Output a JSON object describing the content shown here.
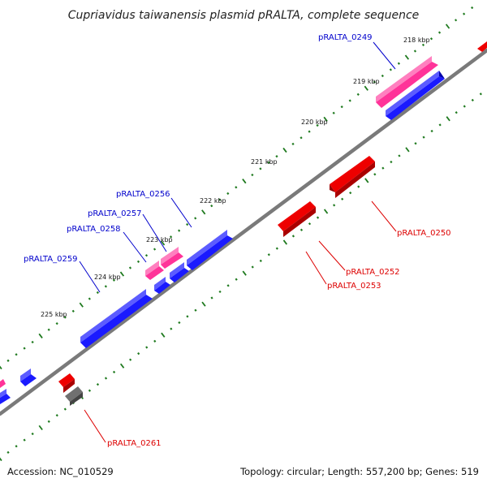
{
  "title": "Cupriavidus taiwanensis plasmid pRALTA, complete sequence",
  "footer": {
    "accession": "Accession: NC_010529",
    "summary": "Topology: circular; Length: 557,200 bp; Genes: 519"
  },
  "colors": {
    "forward_gene": "#0000ee",
    "reverse_gene": "#ee0000",
    "pink_gene": "#ff3399",
    "grey_gene": "#666666",
    "backbone": "#808080",
    "tick": "#1f7a1f",
    "forward_label": "#0000cc",
    "reverse_label": "#dd0000"
  },
  "kbp_ticks": [
    "218 kbp",
    "219 kbp",
    "220 kbp",
    "221 kbp",
    "222 kbp",
    "223 kbp",
    "224 kbp",
    "225 kbp"
  ],
  "gene_labels": [
    {
      "text": "pRALTA_0249",
      "strand": "forward"
    },
    {
      "text": "pRALTA_0256",
      "strand": "forward"
    },
    {
      "text": "pRALTA_0257",
      "strand": "forward"
    },
    {
      "text": "pRALTA_0258",
      "strand": "forward"
    },
    {
      "text": "pRALTA_0259",
      "strand": "forward"
    },
    {
      "text": "pRALTA_0250",
      "strand": "reverse"
    },
    {
      "text": "pRALTA_0252",
      "strand": "reverse"
    },
    {
      "text": "pRALTA_0253",
      "strand": "reverse"
    },
    {
      "text": "pRALTA_0261",
      "strand": "reverse"
    }
  ]
}
